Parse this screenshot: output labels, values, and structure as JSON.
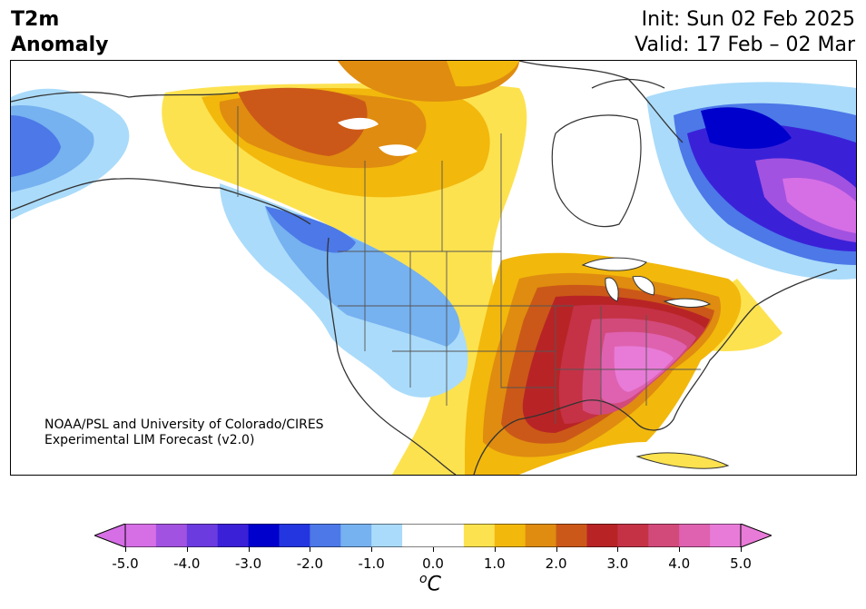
{
  "header": {
    "title_line1": "T2m",
    "title_line2": "Anomaly",
    "init": "Init: Sun 02 Feb 2025",
    "valid": "Valid: 17 Feb – 02 Mar"
  },
  "credit": {
    "line1": "NOAA/PSL and University of Colorado/CIRES",
    "line2": "Experimental LIM Forecast (v2.0)"
  },
  "colorbar": {
    "colors": [
      "#d66ee6",
      "#a252e0",
      "#6b3be0",
      "#3a21d8",
      "#0000cc",
      "#2336e0",
      "#4c78e8",
      "#76b1f0",
      "#aadbfa",
      "#ffffff",
      "#ffffff",
      "#fde24f",
      "#f2b80c",
      "#df8c10",
      "#cb5818",
      "#b82426",
      "#c53246",
      "#d24a7a",
      "#de62b0",
      "#e87bd8"
    ],
    "tick_labels": [
      "-5.0",
      "-4.0",
      "-3.0",
      "-2.0",
      "-1.0",
      "0.0",
      "1.0",
      "2.0",
      "3.0",
      "4.0",
      "5.0"
    ],
    "units_base": "C",
    "units_sup": "o"
  }
}
